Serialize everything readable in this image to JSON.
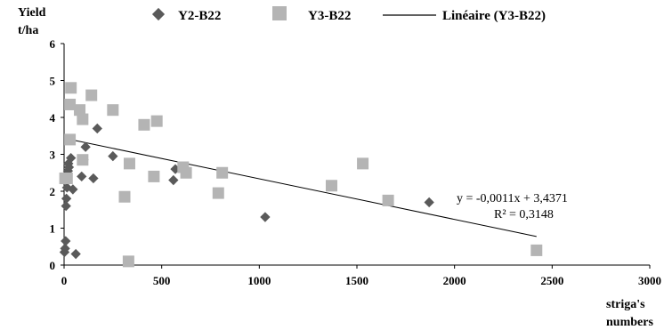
{
  "chart_data": {
    "type": "scatter",
    "ylabel_lines": [
      "Yield",
      "t/ha"
    ],
    "xlabel_lines": [
      "striga's",
      "numbers"
    ],
    "xlim": [
      0,
      3000
    ],
    "ylim": [
      0,
      6
    ],
    "xticks": [
      0,
      500,
      1000,
      1500,
      2000,
      2500,
      3000
    ],
    "yticks": [
      0,
      1,
      2,
      3,
      4,
      5,
      6
    ],
    "grid": false,
    "legend_position": "top",
    "series": [
      {
        "name": "Y2-B22",
        "marker": "diamond",
        "color": "#5a5a5a",
        "points": [
          [
            2,
            0.35
          ],
          [
            5,
            0.45
          ],
          [
            8,
            0.65
          ],
          [
            10,
            1.6
          ],
          [
            12,
            1.8
          ],
          [
            15,
            2.1
          ],
          [
            18,
            2.3
          ],
          [
            20,
            2.55
          ],
          [
            22,
            2.75
          ],
          [
            25,
            2.65
          ],
          [
            35,
            2.9
          ],
          [
            45,
            2.05
          ],
          [
            60,
            0.3
          ],
          [
            90,
            2.4
          ],
          [
            100,
            2.85
          ],
          [
            110,
            3.2
          ],
          [
            150,
            2.35
          ],
          [
            170,
            3.7
          ],
          [
            250,
            2.95
          ],
          [
            560,
            2.3
          ],
          [
            570,
            2.6
          ],
          [
            1030,
            1.3
          ],
          [
            1870,
            1.7
          ]
        ]
      },
      {
        "name": "Y3-B22",
        "marker": "square",
        "color": "#b4b4b4",
        "points": [
          [
            5,
            2.35
          ],
          [
            15,
            2.35
          ],
          [
            30,
            3.4
          ],
          [
            30,
            4.35
          ],
          [
            35,
            4.8
          ],
          [
            80,
            4.2
          ],
          [
            95,
            3.95
          ],
          [
            95,
            2.85
          ],
          [
            140,
            4.6
          ],
          [
            250,
            4.2
          ],
          [
            310,
            1.85
          ],
          [
            330,
            0.1
          ],
          [
            335,
            2.75
          ],
          [
            410,
            3.8
          ],
          [
            460,
            2.4
          ],
          [
            475,
            3.9
          ],
          [
            610,
            2.65
          ],
          [
            625,
            2.5
          ],
          [
            790,
            1.95
          ],
          [
            810,
            2.5
          ],
          [
            1370,
            2.15
          ],
          [
            1530,
            2.75
          ],
          [
            1660,
            1.75
          ],
          [
            2420,
            0.4
          ]
        ]
      }
    ],
    "trendline": {
      "name": "Linéaire (Y3-B22)",
      "slope": -0.0011,
      "intercept": 3.4371,
      "x_range": [
        0,
        2420
      ],
      "equation": "y = -0,0011x + 3,4371",
      "r2": "R² = 0,3148"
    }
  }
}
